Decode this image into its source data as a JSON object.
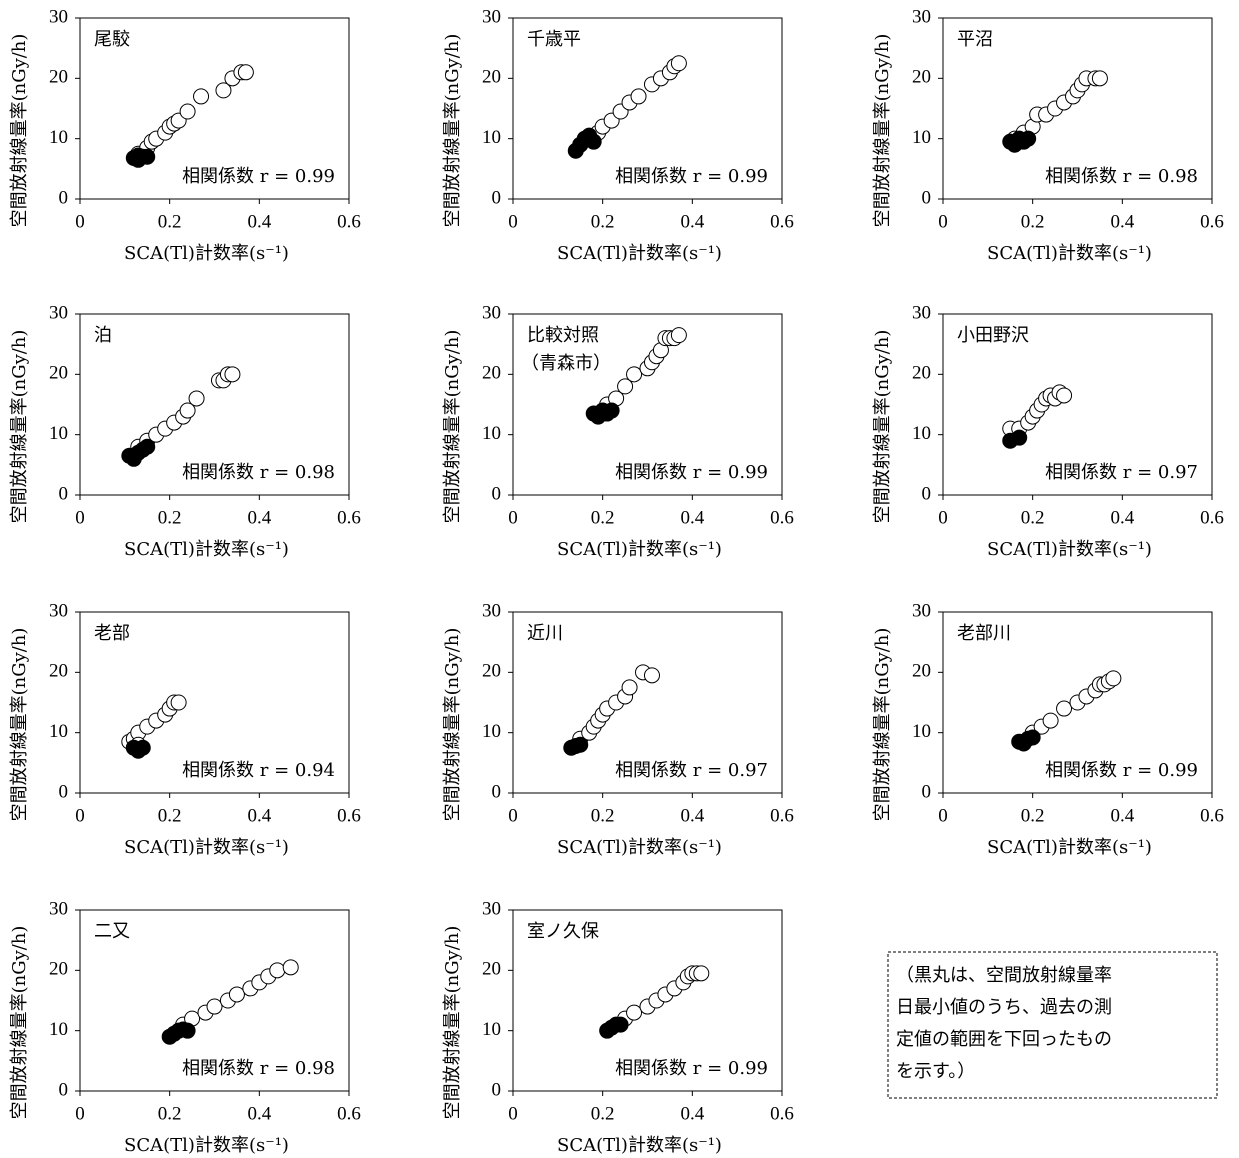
{
  "chart_data": [
    {
      "type": "scatter",
      "title": [
        "尾駮"
      ],
      "annotation": "相関係数 r = 0.99",
      "xlabel": "SCA(Tl)計数率(s⁻¹)",
      "ylabel": "空間放射線量率(nGy/h)",
      "xlim": [
        0,
        0.6
      ],
      "xticks": [
        0,
        0.2,
        0.4,
        0.6
      ],
      "ylim": [
        0,
        30
      ],
      "yticks": [
        0,
        10,
        20,
        30
      ],
      "series": [
        {
          "color": "#ffffff",
          "x": [
            0.13,
            0.15,
            0.16,
            0.17,
            0.19,
            0.2,
            0.21,
            0.22,
            0.24,
            0.27,
            0.32,
            0.34,
            0.36,
            0.37
          ],
          "values": [
            7.5,
            8.5,
            9.5,
            10,
            11,
            12,
            12.5,
            13,
            14.5,
            17,
            18,
            20,
            21,
            21
          ]
        },
        {
          "color": "#000000",
          "x": [
            0.12,
            0.13,
            0.14,
            0.13,
            0.15
          ],
          "values": [
            6.8,
            6.5,
            7,
            7.2,
            7
          ]
        }
      ]
    },
    {
      "type": "scatter",
      "title": [
        "千歳平"
      ],
      "annotation": "相関係数 r = 0.99",
      "xlabel": "SCA(Tl)計数率(s⁻¹)",
      "ylabel": "空間放射線量率(nGy/h)",
      "xlim": [
        0,
        0.6
      ],
      "xticks": [
        0,
        0.2,
        0.4,
        0.6
      ],
      "ylim": [
        0,
        30
      ],
      "yticks": [
        0,
        10,
        20,
        30
      ],
      "series": [
        {
          "color": "#ffffff",
          "x": [
            0.15,
            0.17,
            0.19,
            0.2,
            0.22,
            0.24,
            0.26,
            0.28,
            0.31,
            0.33,
            0.35,
            0.36,
            0.37
          ],
          "values": [
            9,
            10,
            11,
            12,
            13,
            14.5,
            16,
            17,
            19,
            20,
            21,
            22,
            22.5
          ]
        },
        {
          "color": "#000000",
          "x": [
            0.14,
            0.15,
            0.16,
            0.17,
            0.18
          ],
          "values": [
            8,
            9,
            10,
            10.5,
            9.5
          ]
        }
      ]
    },
    {
      "type": "scatter",
      "title": [
        "平沼"
      ],
      "annotation": "相関係数 r = 0.98",
      "xlabel": "SCA(Tl)計数率(s⁻¹)",
      "ylabel": "空間放射線量率(nGy/h)",
      "xlim": [
        0,
        0.6
      ],
      "xticks": [
        0,
        0.2,
        0.4,
        0.6
      ],
      "ylim": [
        0,
        30
      ],
      "yticks": [
        0,
        10,
        20,
        30
      ],
      "series": [
        {
          "color": "#ffffff",
          "x": [
            0.16,
            0.18,
            0.2,
            0.21,
            0.23,
            0.25,
            0.27,
            0.29,
            0.3,
            0.31,
            0.32,
            0.34,
            0.35
          ],
          "values": [
            10,
            11,
            12,
            14,
            14,
            15,
            16,
            17,
            18,
            19,
            20,
            20,
            20
          ]
        },
        {
          "color": "#000000",
          "x": [
            0.15,
            0.16,
            0.17,
            0.18,
            0.19
          ],
          "values": [
            9.5,
            9,
            10,
            9.5,
            10
          ]
        }
      ]
    },
    {
      "type": "scatter",
      "title": [
        "泊"
      ],
      "annotation": "相関係数 r = 0.98",
      "xlabel": "SCA(Tl)計数率(s⁻¹)",
      "ylabel": "空間放射線量率(nGy/h)",
      "xlim": [
        0,
        0.6
      ],
      "xticks": [
        0,
        0.2,
        0.4,
        0.6
      ],
      "ylim": [
        0,
        30
      ],
      "yticks": [
        0,
        10,
        20,
        30
      ],
      "series": [
        {
          "color": "#ffffff",
          "x": [
            0.13,
            0.15,
            0.17,
            0.19,
            0.21,
            0.23,
            0.24,
            0.26,
            0.31,
            0.32,
            0.33,
            0.34
          ],
          "values": [
            8,
            9,
            10,
            11,
            12,
            13,
            14,
            16,
            19,
            19,
            20,
            20
          ]
        },
        {
          "color": "#000000",
          "x": [
            0.11,
            0.12,
            0.13,
            0.14,
            0.15
          ],
          "values": [
            6.5,
            6,
            7,
            7.5,
            8
          ]
        }
      ]
    },
    {
      "type": "scatter",
      "title": [
        "比較対照",
        "（青森市）"
      ],
      "annotation": "相関係数 r = 0.99",
      "xlabel": "SCA(Tl)計数率(s⁻¹)",
      "ylabel": "空間放射線量率(nGy/h)",
      "xlim": [
        0,
        0.6
      ],
      "xticks": [
        0,
        0.2,
        0.4,
        0.6
      ],
      "ylim": [
        0,
        30
      ],
      "yticks": [
        0,
        10,
        20,
        30
      ],
      "series": [
        {
          "color": "#ffffff",
          "x": [
            0.21,
            0.23,
            0.25,
            0.27,
            0.3,
            0.31,
            0.32,
            0.33,
            0.34,
            0.35,
            0.36,
            0.37
          ],
          "values": [
            15,
            16,
            18,
            20,
            21,
            22,
            23,
            24,
            26,
            26,
            26,
            26.5
          ]
        },
        {
          "color": "#000000",
          "x": [
            0.18,
            0.19,
            0.2,
            0.21,
            0.22
          ],
          "values": [
            13.5,
            13,
            14,
            13.5,
            14
          ]
        }
      ]
    },
    {
      "type": "scatter",
      "title": [
        "小田野沢"
      ],
      "annotation": "相関係数 r = 0.97",
      "xlabel": "SCA(Tl)計数率(s⁻¹)",
      "ylabel": "空間放射線量率(nGy/h)",
      "xlim": [
        0,
        0.6
      ],
      "xticks": [
        0,
        0.2,
        0.4,
        0.6
      ],
      "ylim": [
        0,
        30
      ],
      "yticks": [
        0,
        10,
        20,
        30
      ],
      "series": [
        {
          "color": "#ffffff",
          "x": [
            0.15,
            0.17,
            0.19,
            0.2,
            0.21,
            0.22,
            0.23,
            0.24,
            0.25,
            0.26,
            0.27
          ],
          "values": [
            11,
            11,
            12,
            13,
            14,
            15,
            16,
            16.5,
            16,
            17,
            16.5
          ]
        },
        {
          "color": "#000000",
          "x": [
            0.15,
            0.17
          ],
          "values": [
            9,
            9.5
          ]
        }
      ]
    },
    {
      "type": "scatter",
      "title": [
        "老部"
      ],
      "annotation": "相関係数 r = 0.94",
      "xlabel": "SCA(Tl)計数率(s⁻¹)",
      "ylabel": "空間放射線量率(nGy/h)",
      "xlim": [
        0,
        0.6
      ],
      "xticks": [
        0,
        0.2,
        0.4,
        0.6
      ],
      "ylim": [
        0,
        30
      ],
      "yticks": [
        0,
        10,
        20,
        30
      ],
      "series": [
        {
          "color": "#ffffff",
          "x": [
            0.11,
            0.12,
            0.13,
            0.15,
            0.17,
            0.19,
            0.2,
            0.21,
            0.22,
            0.13
          ],
          "values": [
            8.5,
            9,
            10,
            11,
            12,
            13,
            14,
            15,
            15,
            8
          ]
        },
        {
          "color": "#000000",
          "x": [
            0.12,
            0.13,
            0.14
          ],
          "values": [
            7.5,
            7,
            7.5
          ]
        }
      ]
    },
    {
      "type": "scatter",
      "title": [
        "近川"
      ],
      "annotation": "相関係数 r = 0.97",
      "xlabel": "SCA(Tl)計数率(s⁻¹)",
      "ylabel": "空間放射線量率(nGy/h)",
      "xlim": [
        0,
        0.6
      ],
      "xticks": [
        0,
        0.2,
        0.4,
        0.6
      ],
      "ylim": [
        0,
        30
      ],
      "yticks": [
        0,
        10,
        20,
        30
      ],
      "series": [
        {
          "color": "#ffffff",
          "x": [
            0.15,
            0.17,
            0.18,
            0.19,
            0.2,
            0.21,
            0.23,
            0.25,
            0.26,
            0.29,
            0.31
          ],
          "values": [
            9,
            10,
            11,
            12,
            13,
            14,
            15,
            16,
            17.5,
            20,
            19.5
          ]
        },
        {
          "color": "#000000",
          "x": [
            0.13,
            0.14,
            0.15
          ],
          "values": [
            7.5,
            7.8,
            8
          ]
        }
      ]
    },
    {
      "type": "scatter",
      "title": [
        "老部川"
      ],
      "annotation": "相関係数 r = 0.99",
      "xlabel": "SCA(Tl)計数率(s⁻¹)",
      "ylabel": "空間放射線量率(nGy/h)",
      "xlim": [
        0,
        0.6
      ],
      "xticks": [
        0,
        0.2,
        0.4,
        0.6
      ],
      "ylim": [
        0,
        30
      ],
      "yticks": [
        0,
        10,
        20,
        30
      ],
      "series": [
        {
          "color": "#ffffff",
          "x": [
            0.2,
            0.22,
            0.24,
            0.27,
            0.3,
            0.32,
            0.34,
            0.35,
            0.36,
            0.37,
            0.38
          ],
          "values": [
            10,
            11,
            12,
            14,
            15,
            16,
            17,
            18,
            18,
            18.5,
            19
          ]
        },
        {
          "color": "#000000",
          "x": [
            0.17,
            0.18,
            0.19,
            0.2
          ],
          "values": [
            8.5,
            8.2,
            9,
            9.2
          ]
        }
      ]
    },
    {
      "type": "scatter",
      "title": [
        "二又"
      ],
      "annotation": "相関係数 r = 0.98",
      "xlabel": "SCA(Tl)計数率(s⁻¹)",
      "ylabel": "空間放射線量率(nGy/h)",
      "xlim": [
        0,
        0.6
      ],
      "xticks": [
        0,
        0.2,
        0.4,
        0.6
      ],
      "ylim": [
        0,
        30
      ],
      "yticks": [
        0,
        10,
        20,
        30
      ],
      "series": [
        {
          "color": "#ffffff",
          "x": [
            0.23,
            0.25,
            0.28,
            0.3,
            0.33,
            0.35,
            0.38,
            0.4,
            0.42,
            0.44,
            0.47
          ],
          "values": [
            11,
            12,
            13,
            14,
            15,
            16,
            17,
            18,
            19,
            20,
            20.5
          ]
        },
        {
          "color": "#000000",
          "x": [
            0.2,
            0.21,
            0.22,
            0.23,
            0.24
          ],
          "values": [
            9,
            9.5,
            10,
            10.2,
            10
          ]
        }
      ]
    },
    {
      "type": "scatter",
      "title": [
        "室ノ久保"
      ],
      "annotation": "相関係数 r = 0.99",
      "xlabel": "SCA(Tl)計数率(s⁻¹)",
      "ylabel": "空間放射線量率(nGy/h)",
      "xlim": [
        0,
        0.6
      ],
      "xticks": [
        0,
        0.2,
        0.4,
        0.6
      ],
      "ylim": [
        0,
        30
      ],
      "yticks": [
        0,
        10,
        20,
        30
      ],
      "series": [
        {
          "color": "#ffffff",
          "x": [
            0.25,
            0.27,
            0.3,
            0.32,
            0.34,
            0.36,
            0.38,
            0.39,
            0.4,
            0.41,
            0.42
          ],
          "values": [
            12,
            13,
            14,
            15,
            16,
            17,
            18,
            19,
            19.5,
            19.5,
            19.5
          ]
        },
        {
          "color": "#000000",
          "x": [
            0.21,
            0.22,
            0.23,
            0.24
          ],
          "values": [
            10,
            10.5,
            11,
            11
          ]
        }
      ]
    }
  ],
  "note": {
    "lines": [
      "（黒丸は、空間放射線量率",
      "日最小値のうち、過去の測",
      "定値の範囲を下回ったもの",
      "を示す。）"
    ]
  }
}
